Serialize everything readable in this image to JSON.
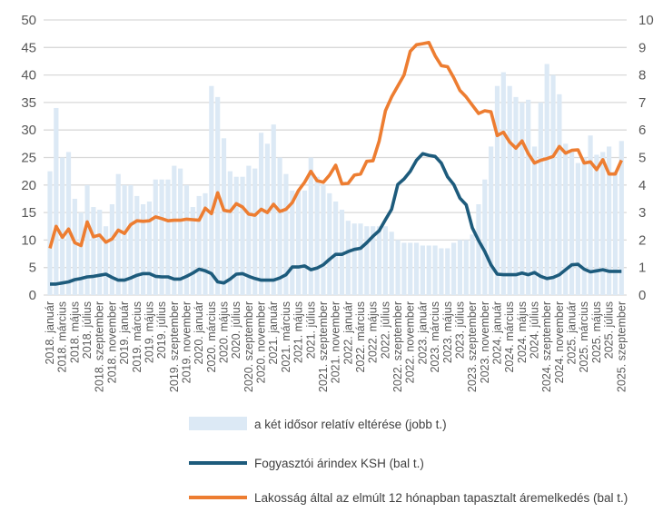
{
  "chart_data": {
    "type": "bar+line",
    "left_axis": {
      "ylim": [
        0,
        50
      ],
      "ticks": [
        "0",
        "5",
        "10",
        "15",
        "20",
        "25",
        "30",
        "35",
        "40",
        "45",
        "50"
      ]
    },
    "right_axis": {
      "ylim": [
        0,
        10
      ],
      "ticks": [
        "0",
        "1",
        "2",
        "3",
        "4",
        "5",
        "6",
        "7",
        "8",
        "9",
        "10"
      ]
    },
    "grid": true,
    "legend_position": "bottom",
    "x_tick_labels": [
      "2018. január",
      "2018. március",
      "2018. május",
      "2018. július",
      "2018. szeptember",
      "2018. november",
      "2019. január",
      "2019. március",
      "2019. május",
      "2019. július",
      "2019. szeptember",
      "2019. november",
      "2020. január",
      "2020. március",
      "2020. május",
      "2020. július",
      "2020. szeptember",
      "2020. november",
      "2021. január",
      "2021. március",
      "2021. május",
      "2021. július",
      "2021. szeptember",
      "2021. november",
      "2022. január",
      "2022. március",
      "2022. május",
      "2022. július",
      "2022. szeptember",
      "2022. november",
      "2023. január",
      "2023. március",
      "2023. május",
      "2023. július",
      "2023. szeptember",
      "2023. november",
      "2024. január",
      "2024. március",
      "2024. május",
      "2024. július",
      "2024. szeptember",
      "2024. november",
      "2025. január",
      "2025. március",
      "2025. május",
      "2025. július",
      "2025. szeptember"
    ],
    "series": [
      {
        "name": "a két idősor relatív eltérése (jobb t.)",
        "type": "bar",
        "axis": "right",
        "color": "#dce9f5",
        "values": [
          4.5,
          6.8,
          5.0,
          5.2,
          3.5,
          3.0,
          4.0,
          3.2,
          3.1,
          2.5,
          3.3,
          4.4,
          4.0,
          4.0,
          3.6,
          3.3,
          3.4,
          4.2,
          4.2,
          4.2,
          4.7,
          4.6,
          4.0,
          3.2,
          3.6,
          3.7,
          7.6,
          7.2,
          5.7,
          4.5,
          4.3,
          4.3,
          4.7,
          4.6,
          5.9,
          5.5,
          6.2,
          5.0,
          4.4,
          3.8,
          3.8,
          3.8,
          5.0,
          4.3,
          4.0,
          3.7,
          3.4,
          3.1,
          2.7,
          2.6,
          2.6,
          2.5,
          2.5,
          2.5,
          2.5,
          2.3,
          2.0,
          1.9,
          1.9,
          1.9,
          1.8,
          1.8,
          1.8,
          1.7,
          1.7,
          1.9,
          2.0,
          2.0,
          2.2,
          3.3,
          4.2,
          5.4,
          7.6,
          8.1,
          7.6,
          7.2,
          7.0,
          7.1,
          5.4,
          7.0,
          8.4,
          8.0,
          7.3,
          5.5,
          5.2,
          4.8,
          5.0,
          5.8,
          5.1,
          5.2,
          5.4,
          4.5,
          5.6
        ]
      },
      {
        "name": "Fogyasztói árindex KSH (bal t.)",
        "type": "line",
        "axis": "left",
        "color": "#1d5b7c",
        "values": [
          2.0,
          2.0,
          2.2,
          2.4,
          2.8,
          3.0,
          3.3,
          3.4,
          3.6,
          3.8,
          3.2,
          2.7,
          2.7,
          3.1,
          3.6,
          3.9,
          3.9,
          3.4,
          3.3,
          3.3,
          2.9,
          2.9,
          3.4,
          4.0,
          4.7,
          4.4,
          3.9,
          2.4,
          2.2,
          2.9,
          3.8,
          3.9,
          3.4,
          3.0,
          2.7,
          2.7,
          2.7,
          3.1,
          3.7,
          5.1,
          5.1,
          5.3,
          4.6,
          4.9,
          5.5,
          6.5,
          7.4,
          7.4,
          7.9,
          8.3,
          8.5,
          9.5,
          10.7,
          11.7,
          13.7,
          15.6,
          20.1,
          21.1,
          22.5,
          24.5,
          25.7,
          25.4,
          25.2,
          24.0,
          21.5,
          20.1,
          17.6,
          16.4,
          12.2,
          9.9,
          7.9,
          5.5,
          3.8,
          3.7,
          3.7,
          3.7,
          4.0,
          3.7,
          4.1,
          3.4,
          3.0,
          3.2,
          3.7,
          4.6,
          5.5,
          5.6,
          4.7,
          4.2,
          4.4,
          4.6,
          4.3,
          4.3,
          4.3
        ]
      },
      {
        "name": "Lakosság által az elmúlt 12 hónapban tapasztalt áremelkedés (bal t.)",
        "type": "line",
        "axis": "left",
        "color": "#ed7d31",
        "values": [
          8.5,
          12.5,
          10.5,
          12.0,
          9.5,
          9.0,
          13.3,
          10.6,
          10.9,
          9.6,
          10.2,
          11.8,
          11.2,
          12.8,
          13.5,
          13.4,
          13.5,
          14.2,
          13.9,
          13.5,
          13.6,
          13.6,
          13.8,
          13.7,
          13.6,
          15.8,
          14.8,
          18.6,
          15.4,
          15.2,
          16.6,
          16.0,
          14.7,
          14.5,
          15.6,
          15.0,
          16.5,
          15.2,
          15.6,
          16.8,
          19.0,
          20.5,
          22.5,
          20.8,
          20.5,
          21.8,
          23.6,
          20.2,
          20.3,
          21.8,
          22.0,
          24.3,
          24.4,
          28.0,
          33.5,
          36.0,
          38.0,
          40.0,
          44.3,
          45.5,
          45.7,
          45.9,
          43.5,
          41.7,
          41.5,
          39.5,
          37.2,
          36.0,
          34.5,
          33.0,
          33.5,
          33.3,
          29.0,
          29.6,
          27.8,
          26.7,
          28.0,
          25.7,
          24.0,
          24.5,
          24.8,
          25.2,
          27.0,
          25.8,
          26.3,
          26.4,
          24.0,
          24.2,
          22.8,
          24.6,
          22.0,
          22.0,
          24.5
        ]
      }
    ]
  }
}
